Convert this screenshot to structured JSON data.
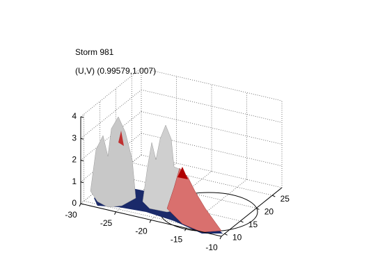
{
  "chart_data": {
    "type": "isosurface3d",
    "title": "Storm 981",
    "subtitle": "(U,V) (0.99579,1.007)",
    "xlim": [
      -30,
      -10
    ],
    "xticks": [
      -30,
      -25,
      -20,
      -15,
      -10
    ],
    "ylim": [
      9,
      28
    ],
    "yticks": [
      10,
      15,
      20,
      25
    ],
    "zlim": [
      0,
      4
    ],
    "zticks": [
      0,
      1,
      2,
      3,
      4
    ],
    "grid": true
  }
}
